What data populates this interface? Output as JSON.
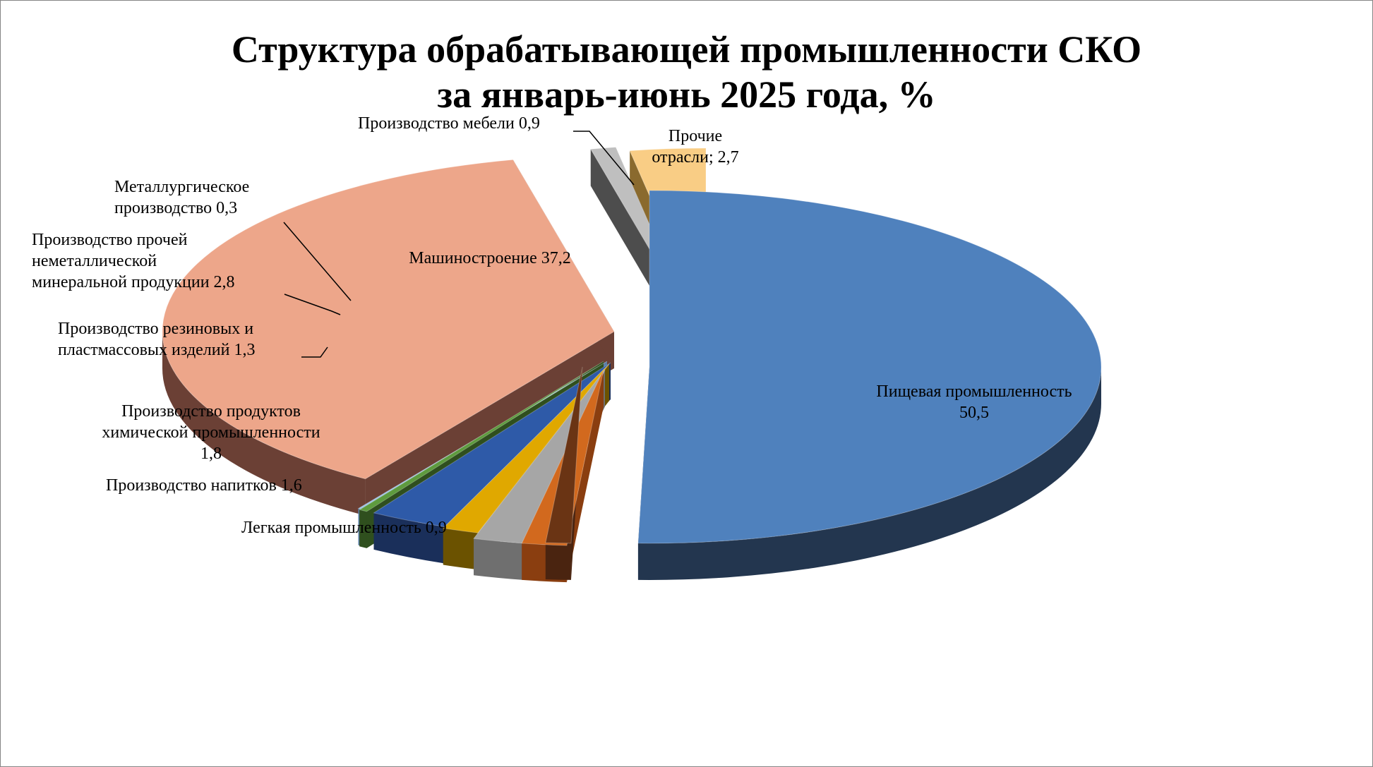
{
  "chart_data": {
    "type": "pie",
    "title": "Структура обрабатывающей промышленности СКО",
    "subtitle": "за январь-июнь 2025 года, %",
    "slices": [
      {
        "label_lines": [
          "Пищевая промышленность",
          "50,5"
        ],
        "value": 50.5,
        "color": "#4f81bd",
        "dark": "#23364f"
      },
      {
        "label_lines": [
          "Легкая промышленность 0,9"
        ],
        "value": 0.9,
        "color": "#6a3414",
        "dark": "#4a2410"
      },
      {
        "label_lines": [
          "Производство напитков 1,6"
        ],
        "value": 1.6,
        "color": "#d2691e",
        "dark": "#8a3e10"
      },
      {
        "label_lines": [
          "Производство продуктов",
          "химической промышленности",
          "1,8"
        ],
        "value": 1.8,
        "color": "#a6a6a6",
        "dark": "#6f6f6f"
      },
      {
        "label_lines": [
          "Производство резиновых и",
          "пластмассовых изделий 1,3"
        ],
        "value": 1.3,
        "color": "#e0a800",
        "dark": "#6b5200"
      },
      {
        "label_lines": [
          "Производство прочей",
          "неметаллической",
          "минеральной продукции 2,8"
        ],
        "value": 2.8,
        "color": "#2e5aa8",
        "dark": "#1a2f5a"
      },
      {
        "label_lines": [
          "Металлургическое",
          "производство 0,3"
        ],
        "value": 0.3,
        "color": "#5e9b3e",
        "dark": "#2f4f1e"
      },
      {
        "label_lines": [],
        "value": 0.2,
        "color": "#9dc3e6",
        "dark": "#5b7fa6"
      },
      {
        "label_lines": [
          "Машиностроение 37,2"
        ],
        "value": 37.2,
        "color": "#eda68a",
        "dark": "#6b4035"
      },
      {
        "label_lines": [
          "Производство мебели 0,9"
        ],
        "value": 0.9,
        "color": "#bfbfbf",
        "dark": "#4d4d4d"
      },
      {
        "label_lines": [
          "Прочие",
          "отрасли; 2,7"
        ],
        "value": 2.7,
        "color": "#f9cd85",
        "dark": "#8a6a2e"
      }
    ]
  }
}
